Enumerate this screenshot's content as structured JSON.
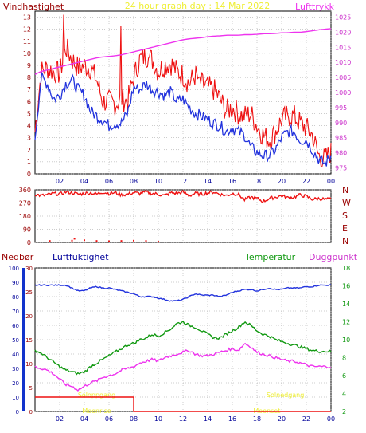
{
  "colors": {
    "red": "#ee1111",
    "red_light": "#ff6a6a",
    "blue": "#2233dd",
    "magenta": "#ee33ee",
    "green": "#119911",
    "darkred": "#990000",
    "yellow": "#eeee33",
    "darkblue": "#000099",
    "grid": "#999999"
  },
  "chart_data": [
    {
      "type": "line",
      "title": "24 hour graph day : 14 Mar 2022",
      "ylabel_left": "Vindhastighet",
      "ylabel_right": "Lufttrykk",
      "x_ticks": [
        "02",
        "04",
        "06",
        "08",
        "10",
        "12",
        "14",
        "16",
        "18",
        "20",
        "22",
        "00"
      ],
      "y_left_ticks": [
        "0",
        "1",
        "2",
        "3",
        "4",
        "5",
        "6",
        "7",
        "8",
        "9",
        "10",
        "11",
        "12",
        "13"
      ],
      "y_right_ticks": [
        "975",
        "980",
        "985",
        "990",
        "995",
        "1000",
        "1005",
        "1010",
        "1015",
        "1020",
        "1025"
      ],
      "ylim_left": [
        0,
        13.5
      ],
      "ylim_right": [
        973,
        1027
      ],
      "xlim": [
        0,
        24
      ],
      "grid": true,
      "x": [
        0,
        0.5,
        1,
        1.5,
        2,
        2.5,
        3,
        3.5,
        4,
        4.5,
        5,
        5.5,
        6,
        6.5,
        7,
        7.5,
        8,
        8.5,
        9,
        9.5,
        10,
        10.5,
        11,
        11.5,
        12,
        12.5,
        13,
        13.5,
        14,
        14.5,
        15,
        15.5,
        16,
        16.5,
        17,
        17.5,
        18,
        18.5,
        19,
        19.5,
        20,
        20.5,
        21,
        21.5,
        22,
        22.5,
        23,
        23.5,
        24
      ],
      "series": [
        {
          "color": "red",
          "values": [
            3.5,
            8.5,
            8.8,
            8.5,
            8.3,
            10.5,
            9.5,
            8.8,
            9.0,
            8.8,
            7.8,
            6.0,
            6.0,
            5.8,
            6.2,
            6.0,
            8.0,
            9.5,
            9.8,
            9.5,
            8.5,
            9.0,
            9.2,
            8.5,
            8.2,
            7.5,
            8.2,
            7.5,
            7.2,
            7.0,
            6.2,
            5.2,
            5.5,
            5.0,
            4.8,
            5.0,
            4.0,
            3.2,
            2.8,
            3.5,
            4.5,
            4.8,
            4.8,
            4.2,
            3.8,
            3.2,
            1.5,
            1.2,
            1.8
          ],
          "peaks": [
            [
              2.3,
              13.2
            ],
            [
              7.0,
              12.3
            ],
            [
              9.2,
              9.6
            ],
            [
              13.3,
              8.0
            ],
            [
              20.5,
              5.0
            ]
          ]
        },
        {
          "color": "blue",
          "values": [
            3.0,
            8.0,
            7.5,
            6.2,
            6.5,
            7.5,
            7.8,
            7.0,
            6.5,
            5.2,
            4.8,
            4.5,
            4.0,
            4.2,
            4.2,
            5.0,
            7.2,
            7.0,
            7.5,
            7.0,
            6.8,
            6.5,
            6.8,
            6.0,
            6.2,
            5.5,
            5.0,
            4.8,
            4.5,
            4.2,
            4.0,
            3.5,
            3.8,
            3.5,
            3.2,
            2.2,
            1.8,
            1.5,
            1.5,
            2.0,
            3.0,
            3.5,
            3.5,
            2.8,
            2.8,
            2.0,
            1.2,
            0.8,
            1.5
          ]
        },
        {
          "color": "magenta",
          "axis": "right",
          "values": [
            1006,
            1007,
            1007.5,
            1008,
            1008.5,
            1009,
            1009.5,
            1010,
            1010.5,
            1011,
            1011.5,
            1011.8,
            1012,
            1012.2,
            1012.5,
            1013,
            1013.5,
            1014,
            1014.5,
            1015,
            1015.5,
            1016,
            1016.5,
            1017,
            1017.5,
            1017.8,
            1018,
            1018.2,
            1018.5,
            1018.7,
            1018.8,
            1019,
            1019,
            1019,
            1019.2,
            1019.2,
            1019.3,
            1019.5,
            1019.5,
            1019.6,
            1019.8,
            1019.8,
            1020,
            1020,
            1020.2,
            1020.5,
            1020.8,
            1021,
            1021.2
          ]
        }
      ]
    },
    {
      "type": "line",
      "y_left_ticks": [
        "0",
        "90",
        "180",
        "270",
        "360"
      ],
      "y_right_labels": [
        "N",
        "W",
        "S",
        "E",
        "N"
      ],
      "ylim": [
        0,
        360
      ],
      "xlim": [
        0,
        24
      ],
      "grid": true,
      "series": [
        {
          "color": "red",
          "values": [
            330,
            320,
            325,
            335,
            330,
            345,
            340,
            330,
            335,
            340,
            330,
            345,
            335,
            340,
            325,
            330,
            340,
            335,
            345,
            335,
            330,
            320,
            340,
            335,
            345,
            320,
            335,
            330,
            340,
            345,
            330,
            320,
            335,
            330,
            290,
            310,
            300,
            280,
            300,
            310,
            320,
            305,
            310,
            325,
            315,
            295,
            300,
            295,
            295
          ]
        },
        {
          "color": "red",
          "type": "dots",
          "points": [
            [
              1.2,
              10
            ],
            [
              3.0,
              12
            ],
            [
              3.2,
              25
            ],
            [
              4.0,
              15
            ],
            [
              5.0,
              10
            ],
            [
              6.0,
              8
            ],
            [
              7.0,
              10
            ],
            [
              8.0,
              12
            ],
            [
              9.0,
              10
            ],
            [
              10.0,
              5
            ]
          ]
        }
      ]
    },
    {
      "type": "line",
      "legend": [
        "Nedbør",
        "Luftfuktighet",
        "Temperatur",
        "Duggpunkt"
      ],
      "y_ticks_nedbor": [
        "0",
        "5",
        "10",
        "15",
        "20",
        "25",
        "30"
      ],
      "y_ticks_luftfuktighet": [
        "0",
        "10",
        "20",
        "30",
        "40",
        "50",
        "60",
        "70",
        "80",
        "90",
        "100"
      ],
      "y_ticks_temperatur": [
        "2",
        "4",
        "6",
        "8",
        "10",
        "12",
        "14",
        "16",
        "18"
      ],
      "x_ticks": [
        "02",
        "04",
        "06",
        "08",
        "10",
        "12",
        "14",
        "16",
        "18",
        "20",
        "22",
        "00"
      ],
      "xlim": [
        0,
        24
      ],
      "grid": true,
      "annotations": [
        "Soloppgang",
        "Moonrise",
        "Solnedgang",
        "Moonset"
      ],
      "series": [
        {
          "name": "Luftfuktighet",
          "color": "blue",
          "axis": "luftfuktighet",
          "values": [
            88,
            88,
            88,
            88,
            88,
            88,
            86,
            84,
            84,
            86,
            87,
            86,
            86,
            85,
            84,
            83,
            82,
            80,
            80,
            80,
            79,
            78,
            77,
            77,
            78,
            80,
            82,
            81,
            81,
            81,
            80,
            81,
            83,
            84,
            85,
            85,
            84,
            85,
            86,
            85,
            85,
            86,
            86,
            86,
            87,
            87,
            88,
            88,
            88
          ]
        },
        {
          "name": "Temperatur",
          "color": "green",
          "axis": "temperatur",
          "values": [
            8.8,
            8.5,
            8.0,
            7.5,
            7.0,
            6.6,
            6.4,
            6.2,
            6.4,
            7.0,
            7.4,
            7.8,
            8.2,
            8.6,
            9.0,
            9.4,
            9.6,
            10.0,
            10.2,
            10.6,
            10.4,
            10.8,
            11.2,
            11.8,
            12.0,
            11.6,
            11.4,
            11.0,
            10.6,
            10.2,
            10.2,
            10.6,
            11.0,
            11.4,
            12.0,
            11.6,
            11.0,
            10.6,
            10.4,
            10.0,
            9.8,
            9.6,
            9.4,
            9.2,
            9.0,
            8.8,
            8.7,
            8.7,
            8.7
          ]
        },
        {
          "name": "Duggpunkt",
          "color": "magenta",
          "axis": "temperatur",
          "values": [
            7.0,
            6.8,
            6.6,
            6.2,
            5.6,
            5.0,
            4.8,
            4.4,
            4.8,
            5.2,
            5.4,
            5.8,
            6.0,
            6.2,
            6.6,
            6.8,
            7.0,
            7.4,
            7.6,
            7.8,
            7.6,
            8.0,
            8.2,
            8.4,
            8.6,
            8.8,
            8.4,
            8.2,
            8.2,
            8.4,
            8.6,
            8.8,
            9.0,
            8.8,
            9.6,
            9.2,
            8.6,
            8.4,
            8.2,
            8.0,
            7.8,
            7.6,
            7.6,
            7.4,
            7.2,
            7.0,
            7.0,
            7.0,
            7.0
          ]
        },
        {
          "name": "Nedbør",
          "color": "red",
          "axis": "nedbor",
          "values": [
            3,
            3,
            3,
            3,
            3,
            3,
            3,
            3,
            3,
            3,
            3,
            3,
            3,
            3,
            3,
            3,
            0,
            0,
            0,
            0,
            0,
            0,
            0,
            0,
            0,
            0,
            0,
            0,
            0,
            0,
            0,
            0,
            0,
            0,
            0,
            0,
            0,
            0,
            0,
            0,
            0,
            0,
            0,
            0,
            0,
            0,
            0,
            0,
            0
          ]
        }
      ]
    }
  ]
}
